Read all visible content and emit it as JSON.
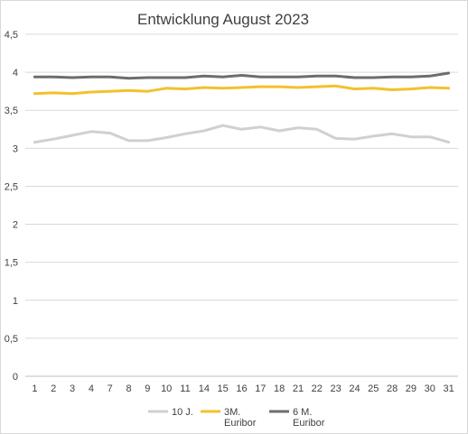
{
  "chart_data": {
    "type": "line",
    "title": "Entwicklung August 2023",
    "xlabel": "",
    "ylabel": "",
    "ylim": [
      0,
      4.5
    ],
    "yticks": [
      "0",
      "0,5",
      "1",
      "1,5",
      "2",
      "2,5",
      "3",
      "3,5",
      "4",
      "4,5"
    ],
    "yticks_values": [
      0,
      0.5,
      1,
      1.5,
      2,
      2.5,
      3,
      3.5,
      4,
      4.5
    ],
    "categories": [
      "1",
      "2",
      "3",
      "4",
      "7",
      "8",
      "9",
      "10",
      "11",
      "14",
      "15",
      "16",
      "17",
      "18",
      "21",
      "22",
      "23",
      "24",
      "25",
      "28",
      "29",
      "30",
      "31"
    ],
    "grid": true,
    "legend_position": "bottom",
    "series": [
      {
        "name": "10 J.",
        "color": "#d0d0d0",
        "values": [
          3.08,
          3.12,
          3.17,
          3.22,
          3.2,
          3.1,
          3.1,
          3.14,
          3.19,
          3.23,
          3.3,
          3.25,
          3.28,
          3.23,
          3.27,
          3.25,
          3.13,
          3.12,
          3.16,
          3.19,
          3.15,
          3.15,
          3.08
        ]
      },
      {
        "name": "3M. Euribor",
        "legend_lines": [
          "3M.",
          "Euribor"
        ],
        "color": "#f2c12e",
        "values": [
          3.72,
          3.73,
          3.72,
          3.74,
          3.75,
          3.76,
          3.75,
          3.79,
          3.78,
          3.8,
          3.79,
          3.8,
          3.81,
          3.81,
          3.8,
          3.81,
          3.82,
          3.78,
          3.79,
          3.77,
          3.78,
          3.8,
          3.79
        ]
      },
      {
        "name": "6 M. Euribor",
        "legend_lines": [
          "6 M.",
          "Euribor"
        ],
        "color": "#6d6d6d",
        "values": [
          3.94,
          3.94,
          3.93,
          3.94,
          3.94,
          3.92,
          3.93,
          3.93,
          3.93,
          3.95,
          3.94,
          3.96,
          3.94,
          3.94,
          3.94,
          3.95,
          3.95,
          3.93,
          3.93,
          3.94,
          3.94,
          3.95,
          3.99
        ]
      }
    ]
  }
}
